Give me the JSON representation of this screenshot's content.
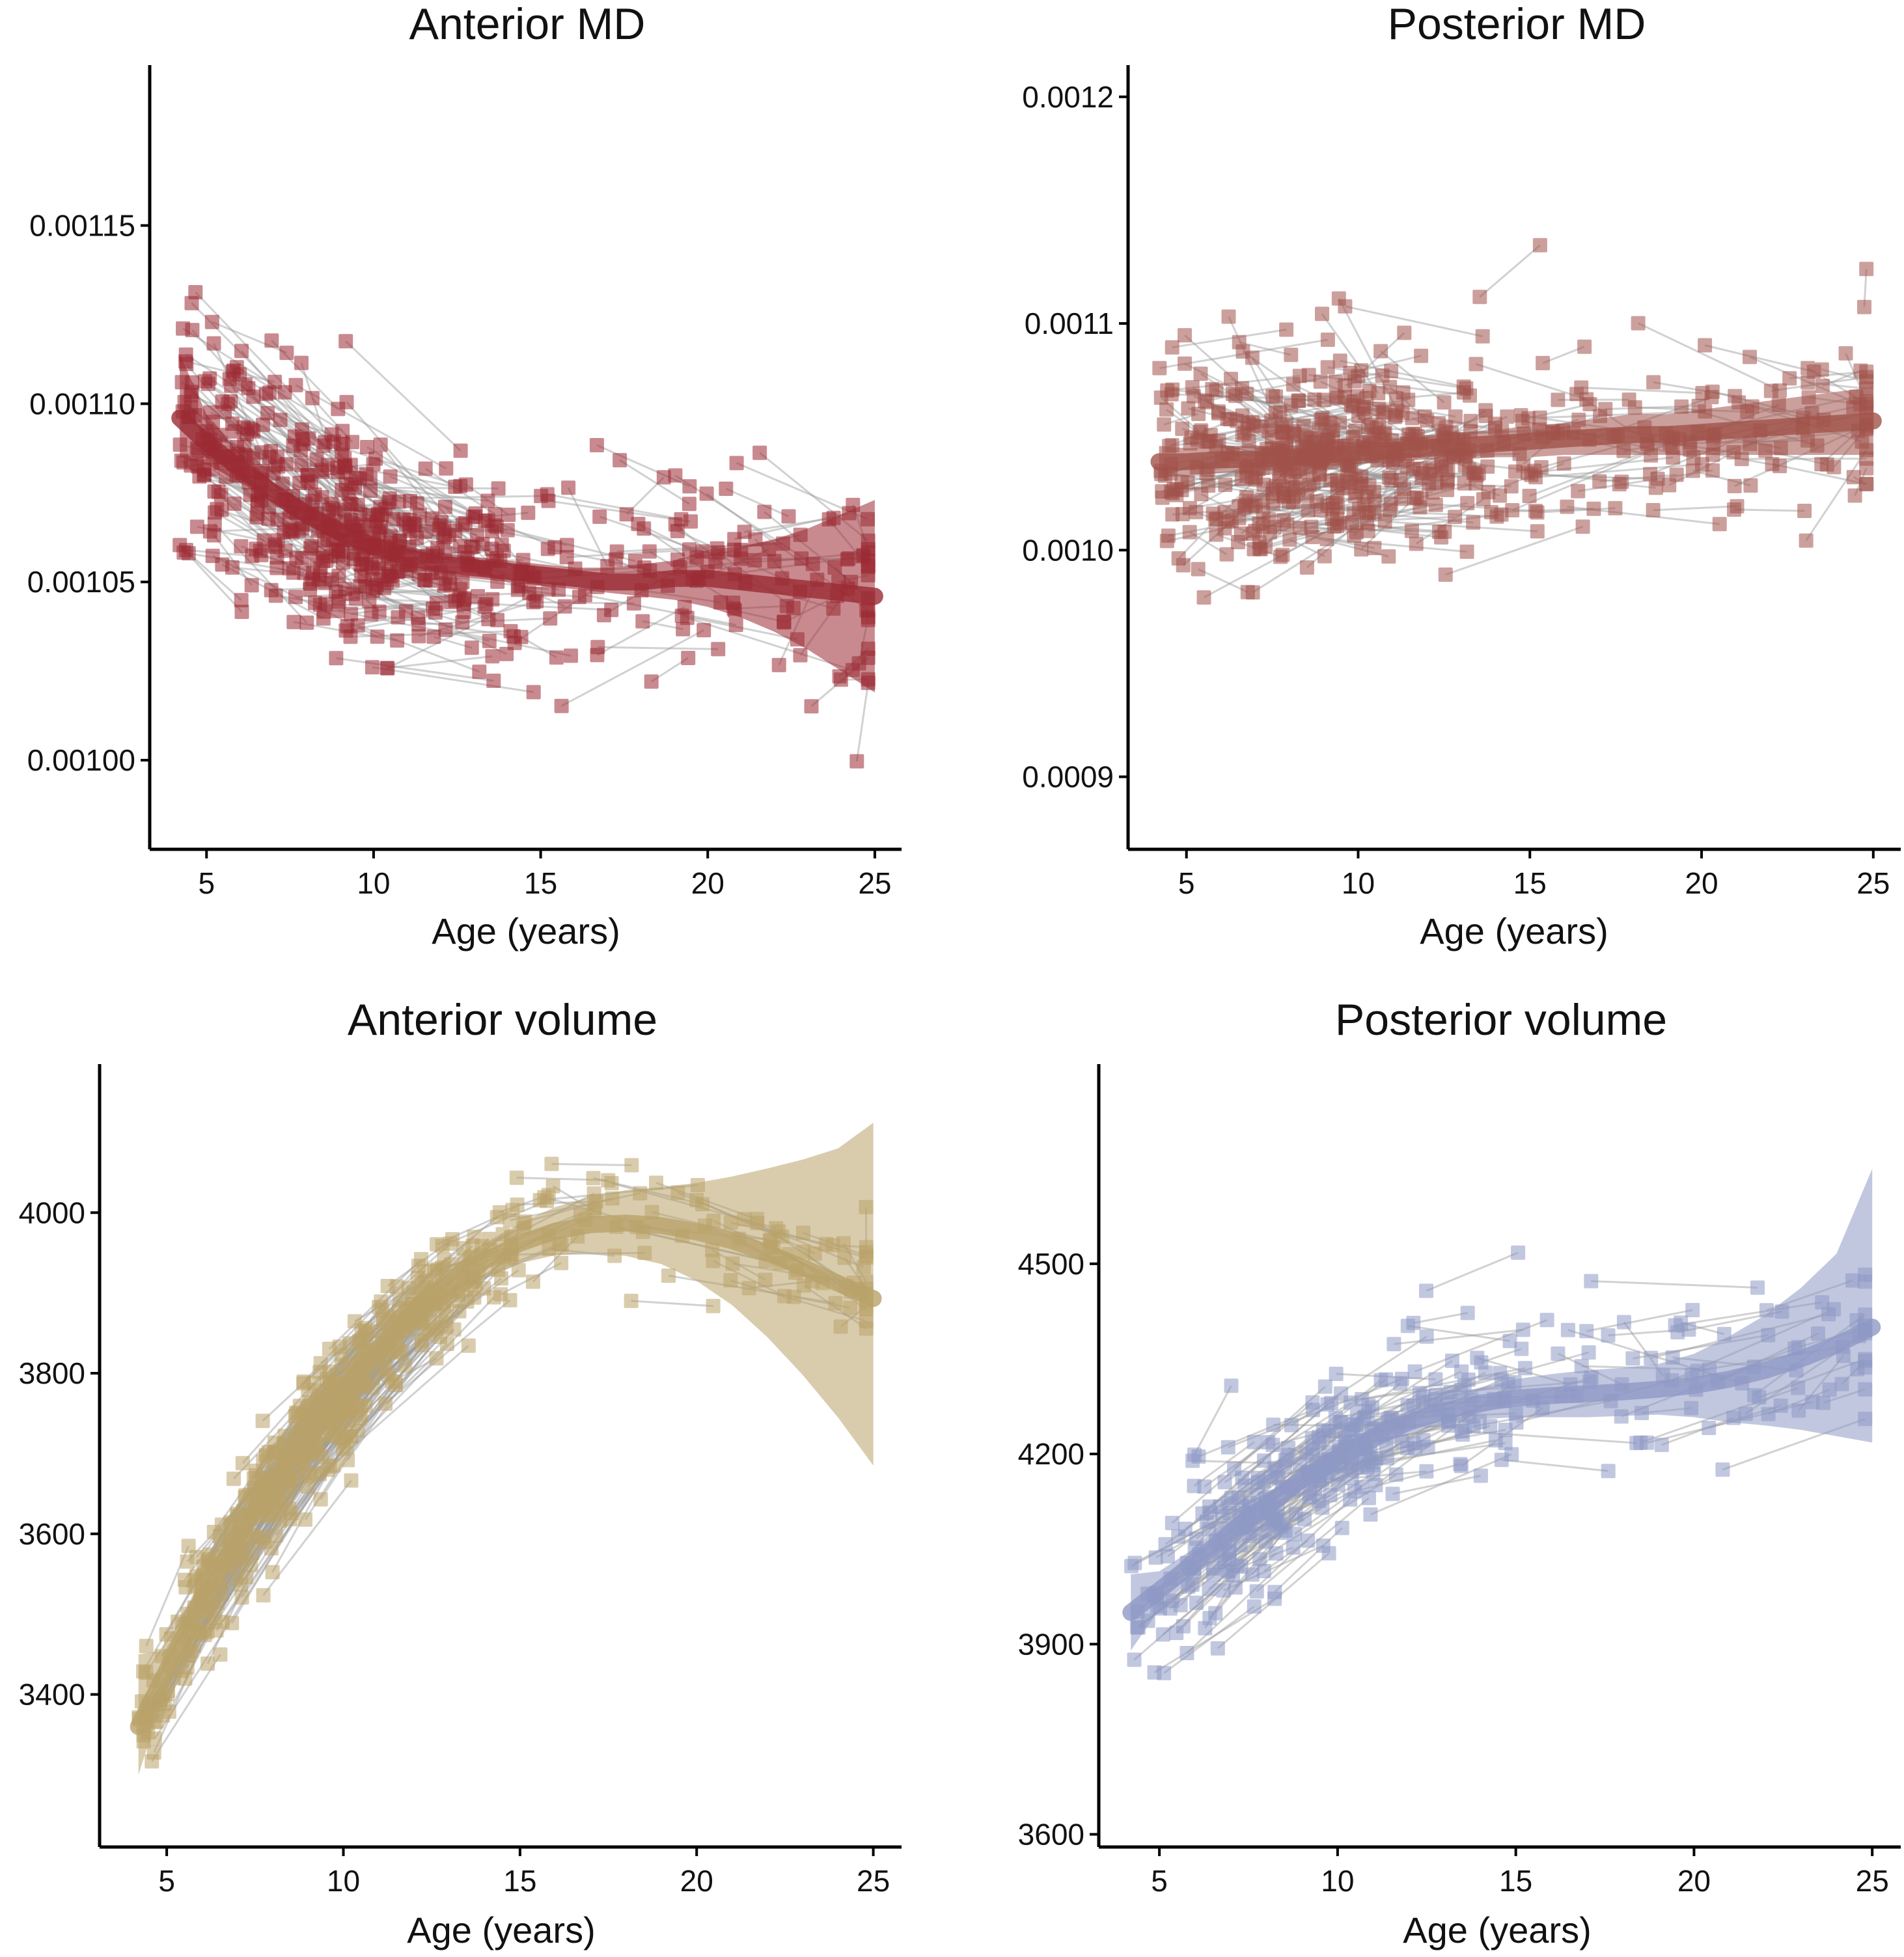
{
  "figure": {
    "colors": {
      "anterior_md": "#9b2a33",
      "posterior_md": "#a0524a",
      "anterior_volume": "#b9a36a",
      "posterior_volume": "#8e99c4",
      "subject_lines": "#9a9a9a"
    }
  },
  "chart_data": [
    {
      "id": "anterior_md",
      "type": "scatter",
      "title": "Anterior MD",
      "xlabel": "Age (years)",
      "ylabel": "",
      "xlim": [
        3.3,
        25.8
      ],
      "ylim": [
        0.000975,
        0.001195
      ],
      "xticks": [
        5,
        10,
        15,
        20,
        25
      ],
      "xtick_labels": [
        "5",
        "10",
        "15",
        "20",
        "25"
      ],
      "yticks": [
        0.001,
        0.00105,
        0.0011,
        0.00115
      ],
      "ytick_labels": [
        "0.00100",
        "0.00105",
        "0.00110",
        "0.00115"
      ],
      "grid": false,
      "legend": "none",
      "color": "#9b2a33",
      "marker": "square",
      "point_cloud": {
        "n": 650,
        "seed": 11,
        "x_range": [
          4.2,
          24.8
        ],
        "x_mode": 7.5,
        "spread": 2.4e-05,
        "min_y": 0.00098,
        "max_y": 0.00119
      },
      "fit": {
        "x": [
          4.2,
          5,
          6,
          7,
          8,
          9,
          10,
          11,
          12,
          13,
          14,
          15,
          16,
          17,
          18,
          19,
          20,
          21,
          22,
          23,
          24,
          25
        ],
        "y": [
          0.001096,
          0.001089,
          0.001082,
          0.001075,
          0.001069,
          0.001064,
          0.00106,
          0.001057,
          0.001055,
          0.001054,
          0.001053,
          0.001052,
          0.001051,
          0.00105,
          0.00105,
          0.001051,
          0.001051,
          0.00105,
          0.001049,
          0.001048,
          0.001047,
          0.001046
        ]
      },
      "ci": {
        "lower": [
          0.001085,
          0.001083,
          0.001078,
          0.001072,
          0.001066,
          0.001061,
          0.001057,
          0.001054,
          0.001052,
          0.001051,
          0.00105,
          0.001049,
          0.001048,
          0.001047,
          0.001046,
          0.001045,
          0.001043,
          0.00104,
          0.001036,
          0.001031,
          0.001025,
          0.001019
        ],
        "upper": [
          0.001114,
          0.001097,
          0.001086,
          0.001078,
          0.001072,
          0.001067,
          0.001063,
          0.00106,
          0.001058,
          0.001057,
          0.001056,
          0.001055,
          0.001054,
          0.001054,
          0.001055,
          0.001056,
          0.001059,
          0.00106,
          0.001062,
          0.001065,
          0.001069,
          0.001073
        ]
      }
    },
    {
      "id": "posterior_md",
      "type": "scatter",
      "title": "Posterior MD",
      "xlabel": "Age (years)",
      "ylabel": "",
      "xlim": [
        3.3,
        25.8
      ],
      "ylim": [
        0.000868,
        0.001214
      ],
      "xticks": [
        5,
        10,
        15,
        20,
        25
      ],
      "xtick_labels": [
        "5",
        "10",
        "15",
        "20",
        "25"
      ],
      "yticks": [
        0.0009,
        0.001,
        0.0011,
        0.0012
      ],
      "ytick_labels": [
        "0.0009",
        "0.0010",
        "0.0011",
        "0.0012"
      ],
      "grid": false,
      "legend": "none",
      "color": "#a0524a",
      "marker": "square",
      "point_cloud": {
        "n": 650,
        "seed": 23,
        "x_range": [
          4.2,
          24.8
        ],
        "x_mode": 7.5,
        "spread": 3.4e-05,
        "min_y": 0.000875,
        "max_y": 0.001205
      },
      "fit": {
        "x": [
          4.2,
          5,
          6,
          7,
          8,
          9,
          10,
          11,
          12,
          13,
          14,
          15,
          16,
          17,
          18,
          19,
          20,
          21,
          22,
          23,
          24,
          25
        ],
        "y": [
          0.001039,
          0.001039,
          0.00104,
          0.00104,
          0.001041,
          0.001042,
          0.001043,
          0.001044,
          0.001045,
          0.001046,
          0.001047,
          0.001048,
          0.001049,
          0.00105,
          0.001051,
          0.001051,
          0.001052,
          0.001053,
          0.001054,
          0.001055,
          0.001056,
          0.001057
        ]
      },
      "ci": {
        "lower": [
          0.001032,
          0.001033,
          0.001034,
          0.001035,
          0.001036,
          0.001037,
          0.001038,
          0.001039,
          0.00104,
          0.00104,
          0.001041,
          0.001041,
          0.001042,
          0.001042,
          0.001042,
          0.001042,
          0.001042,
          0.001042,
          0.001042,
          0.001042,
          0.001042,
          0.001042
        ],
        "upper": [
          0.001046,
          0.001045,
          0.001046,
          0.001046,
          0.001046,
          0.001047,
          0.001048,
          0.001049,
          0.00105,
          0.001052,
          0.001053,
          0.001055,
          0.001056,
          0.001058,
          0.00106,
          0.00106,
          0.001062,
          0.001064,
          0.001066,
          0.001068,
          0.00107,
          0.001072
        ]
      }
    },
    {
      "id": "anterior_volume",
      "type": "scatter",
      "title": "Anterior volume",
      "xlabel": "Age (years)",
      "ylabel": "",
      "xlim": [
        3.1,
        25.8
      ],
      "ylim": [
        3210,
        4185
      ],
      "xticks": [
        5,
        10,
        15,
        20,
        25
      ],
      "xtick_labels": [
        "5",
        "10",
        "15",
        "20",
        "25"
      ],
      "yticks": [
        3400,
        3600,
        3800,
        4000
      ],
      "ytick_labels": [
        "3400",
        "3600",
        "3800",
        "4000"
      ],
      "grid": false,
      "legend": "none",
      "color": "#b9a36a",
      "marker": "square",
      "point_cloud": {
        "n": 650,
        "seed": 37,
        "x_range": [
          4.2,
          24.8
        ],
        "x_mode": 7.5,
        "spread": 55,
        "min_y": 3250,
        "max_y": 4140
      },
      "fit": {
        "x": [
          4.2,
          5,
          6,
          7,
          8,
          9,
          10,
          11,
          12,
          13,
          14,
          15,
          16,
          17,
          18,
          19,
          20,
          21,
          22,
          23,
          24,
          25
        ],
        "y": [
          3360,
          3430,
          3520,
          3595,
          3665,
          3725,
          3780,
          3830,
          3872,
          3910,
          3940,
          3962,
          3977,
          3985,
          3987,
          3984,
          3976,
          3965,
          3950,
          3932,
          3912,
          3893
        ]
      },
      "ci": {
        "lower": [
          3300,
          3410,
          3505,
          3582,
          3652,
          3712,
          3767,
          3815,
          3855,
          3890,
          3918,
          3937,
          3947,
          3950,
          3946,
          3936,
          3915,
          3885,
          3845,
          3798,
          3745,
          3685
        ],
        "upper": [
          3450,
          3455,
          3535,
          3608,
          3678,
          3738,
          3793,
          3845,
          3889,
          3930,
          3962,
          3987,
          4007,
          4020,
          4028,
          4032,
          4037,
          4045,
          4055,
          4066,
          4080,
          4112
        ]
      }
    },
    {
      "id": "posterior_volume",
      "type": "scatter",
      "title": "Posterior volume",
      "xlabel": "Age (years)",
      "ylabel": "",
      "xlim": [
        3.3,
        25.8
      ],
      "ylim": [
        3580,
        4815
      ],
      "xticks": [
        5,
        10,
        15,
        20,
        25
      ],
      "xtick_labels": [
        "5",
        "10",
        "15",
        "20",
        "25"
      ],
      "yticks": [
        3600,
        3900,
        4200,
        4500
      ],
      "ytick_labels": [
        "3600",
        "3900",
        "4200",
        "4500"
      ],
      "grid": false,
      "legend": "none",
      "color": "#8e99c4",
      "marker": "square",
      "point_cloud": {
        "n": 420,
        "seed": 51,
        "x_range": [
          4.2,
          24.8
        ],
        "x_mode": 8.0,
        "spread": 95,
        "min_y": 3620,
        "max_y": 4740
      },
      "fit": {
        "x": [
          4.2,
          5,
          6,
          7,
          8,
          9,
          10,
          11,
          12,
          13,
          14,
          15,
          16,
          17,
          18,
          19,
          20,
          21,
          22,
          23,
          24,
          25
        ],
        "y": [
          3950,
          3985,
          4030,
          4075,
          4118,
          4160,
          4195,
          4225,
          4250,
          4268,
          4280,
          4288,
          4292,
          4295,
          4298,
          4302,
          4308,
          4318,
          4332,
          4350,
          4372,
          4400
        ]
      },
      "ci": {
        "lower": [
          3890,
          3955,
          4008,
          4055,
          4100,
          4142,
          4178,
          4208,
          4232,
          4247,
          4255,
          4258,
          4258,
          4258,
          4260,
          4262,
          4258,
          4250,
          4245,
          4238,
          4228,
          4218
        ]
      },
      "ci_upper": {
        "upper": [
          4010,
          4015,
          4052,
          4095,
          4136,
          4178,
          4212,
          4242,
          4268,
          4289,
          4305,
          4318,
          4326,
          4332,
          4336,
          4342,
          4358,
          4386,
          4419,
          4462,
          4516,
          4650
        ]
      }
    }
  ]
}
